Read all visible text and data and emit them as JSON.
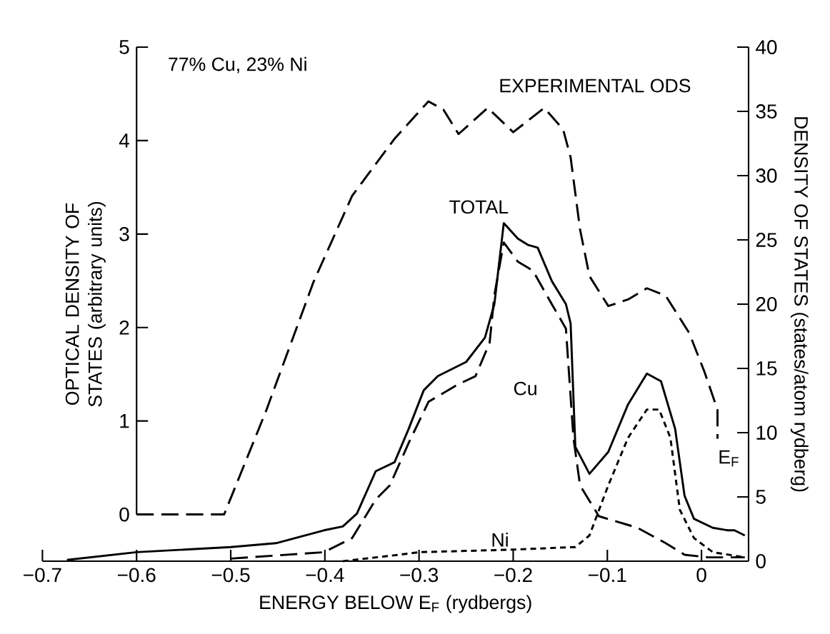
{
  "chart_data": {
    "type": "line",
    "title": "77% Cu, 23% Ni",
    "xlabel": "ENERGY BELOW E$_{F}$ (rydbergs)",
    "ylabel": "OPTICAL DENSITY OF STATES (arbitrary units)",
    "y2label": "DENSITY OF STATES (states/atom rydberg)",
    "xlim": [
      -0.7,
      0.05
    ],
    "ylim": [
      -0.5,
      5
    ],
    "y2lim": [
      0,
      40
    ],
    "xticks": [
      {
        "value": -0.7,
        "label": "−0.7"
      },
      {
        "value": -0.6,
        "label": "−0.6"
      },
      {
        "value": -0.5,
        "label": "−0.5"
      },
      {
        "value": -0.4,
        "label": "−0.4"
      },
      {
        "value": -0.3,
        "label": "−0.3"
      },
      {
        "value": -0.2,
        "label": "−0.2"
      },
      {
        "value": -0.1,
        "label": "−0.1"
      },
      {
        "value": 0,
        "label": "0"
      }
    ],
    "yticks": [
      0,
      1,
      2,
      3,
      4,
      5
    ],
    "y2ticks": [
      0,
      5,
      10,
      15,
      20,
      25,
      30,
      35,
      40
    ],
    "marker": "none",
    "legend": false,
    "grid": false,
    "annotations": [
      "E$_{F}$"
    ],
    "series": [
      {
        "name": "EXPERIMENTAL ODS",
        "axis": "y",
        "color": "#000000",
        "line_style": "dashed",
        "x": [
          -0.6,
          -0.507,
          -0.462,
          -0.412,
          -0.371,
          -0.326,
          -0.29,
          -0.274,
          -0.258,
          -0.227,
          -0.2,
          -0.167,
          -0.147,
          -0.139,
          -0.129,
          -0.119,
          -0.099,
          -0.078,
          -0.058,
          -0.038,
          -0.013,
          0.003,
          0.017,
          0.017
        ],
        "values": [
          0,
          0,
          1.12,
          2.49,
          3.41,
          4.02,
          4.42,
          4.33,
          4.07,
          4.35,
          4.09,
          4.35,
          4.12,
          3.82,
          3.05,
          2.55,
          2.23,
          2.3,
          2.42,
          2.34,
          1.94,
          1.53,
          1.12,
          0.81
        ]
      },
      {
        "name": "TOTAL",
        "axis": "y2",
        "color": "#000000",
        "line_style": "solid",
        "x": [
          -0.674,
          -0.6,
          -0.5,
          -0.452,
          -0.401,
          -0.381,
          -0.366,
          -0.346,
          -0.326,
          -0.311,
          -0.295,
          -0.28,
          -0.25,
          -0.23,
          -0.22,
          -0.21,
          -0.195,
          -0.184,
          -0.174,
          -0.159,
          -0.144,
          -0.139,
          -0.134,
          -0.119,
          -0.099,
          -0.078,
          -0.058,
          -0.043,
          -0.028,
          -0.018,
          -0.008,
          0.012,
          0.028,
          0.035,
          0.046
        ],
        "values": [
          0.1,
          0.7,
          1.1,
          1.4,
          2.4,
          2.7,
          3.7,
          7.0,
          7.7,
          10.3,
          13.3,
          14.4,
          15.5,
          17.4,
          20.0,
          26.3,
          25.1,
          24.6,
          24.4,
          21.8,
          20.0,
          18.5,
          8.9,
          6.8,
          8.5,
          12.2,
          14.6,
          14.0,
          10.3,
          5.1,
          3.3,
          2.6,
          2.4,
          2.4,
          2.0
        ]
      },
      {
        "name": "Cu",
        "axis": "y2",
        "color": "#000000",
        "line_style": "dashed",
        "x": [
          -0.5,
          -0.401,
          -0.371,
          -0.346,
          -0.331,
          -0.311,
          -0.29,
          -0.26,
          -0.24,
          -0.225,
          -0.22,
          -0.21,
          -0.195,
          -0.179,
          -0.159,
          -0.144,
          -0.136,
          -0.129,
          -0.109,
          -0.068,
          -0.038,
          -0.018,
          0.007,
          0.046
        ],
        "values": [
          0.2,
          0.7,
          1.8,
          4.8,
          5.9,
          9.2,
          12.4,
          13.7,
          14.4,
          17.0,
          20.7,
          24.8,
          23.3,
          22.6,
          20.0,
          18.1,
          9.6,
          5.9,
          3.5,
          2.6,
          1.4,
          0.5,
          0.3,
          0.3
        ]
      },
      {
        "name": "Ni",
        "axis": "y2",
        "color": "#000000",
        "line_style": "dotted",
        "x": [
          -0.381,
          -0.321,
          -0.3,
          -0.2,
          -0.134,
          -0.119,
          -0.099,
          -0.078,
          -0.058,
          -0.045,
          -0.033,
          -0.023,
          -0.008,
          0.012,
          0.046
        ],
        "values": [
          0,
          0.5,
          0.7,
          0.9,
          1.1,
          2.0,
          5.9,
          9.6,
          11.8,
          11.8,
          9.6,
          4.0,
          1.8,
          0.7,
          0.3
        ]
      }
    ]
  }
}
